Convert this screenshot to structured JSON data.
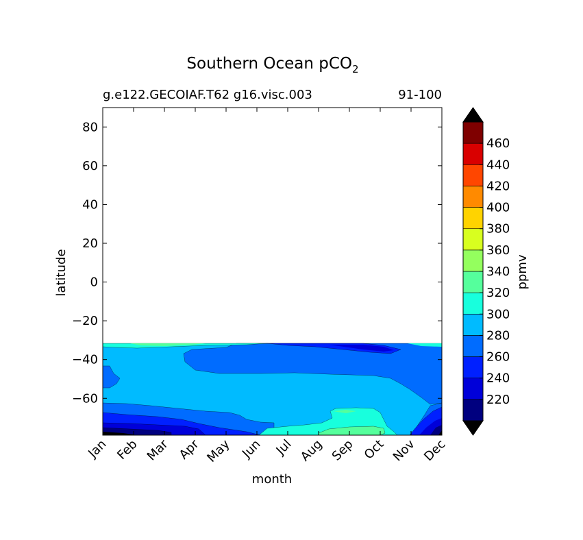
{
  "chart_data": {
    "type": "heatmap",
    "plot_kind": "filled contour",
    "title": "Southern Ocean pCO",
    "title_subscript": "2",
    "subtitle_left": "g.e122.GECOIAF.T62 g16.visc.003",
    "subtitle_right": "91-100",
    "xlabel": "month",
    "ylabel": "latitude",
    "x_categories": [
      "Jan",
      "Feb",
      "Mar",
      "Apr",
      "May",
      "Jun",
      "Jul",
      "Aug",
      "Sep",
      "Oct",
      "Nov",
      "Dec"
    ],
    "xlim": [
      1,
      12
    ],
    "ylim": [
      -79,
      90
    ],
    "yticks": [
      80,
      60,
      40,
      20,
      0,
      -20,
      -40,
      -60
    ],
    "ytick_labels": [
      "80",
      "60",
      "40",
      "20",
      "0",
      "−20",
      "−40",
      "−60"
    ],
    "data_lat_range": [
      -79,
      -32
    ],
    "colorbar": {
      "label": "ppmv",
      "levels": [
        200,
        220,
        240,
        260,
        280,
        300,
        320,
        340,
        360,
        380,
        400,
        420,
        440,
        460,
        480
      ],
      "tick_values": [
        220,
        240,
        260,
        280,
        300,
        320,
        340,
        360,
        380,
        400,
        420,
        440,
        460
      ],
      "colors": [
        "#00007f",
        "#0000d9",
        "#0020ff",
        "#006cff",
        "#00bbff",
        "#18ffdd",
        "#55ff9c",
        "#94ff5e",
        "#d8ff1f",
        "#ffd300",
        "#ff8a00",
        "#ff4600",
        "#d90000",
        "#7f0000"
      ],
      "under_color": "#000000",
      "over_color": "#000000",
      "extend": "both"
    },
    "field": [
      {
        "month": "Jan",
        "lat": -34,
        "value": 290
      },
      {
        "month": "Jan",
        "lat": -55,
        "value": 265
      },
      {
        "month": "Jan",
        "lat": -72,
        "value": 250
      },
      {
        "month": "Feb",
        "lat": -55,
        "value": 285
      },
      {
        "month": "Jun",
        "lat": -50,
        "value": 285
      },
      {
        "month": "Jul",
        "lat": -34,
        "value": 250
      },
      {
        "month": "Sep",
        "lat": -68,
        "value": 305
      },
      {
        "month": "Sep",
        "lat": -76,
        "value": 325
      },
      {
        "month": "Nov",
        "lat": -70,
        "value": 255
      },
      {
        "month": "Dec",
        "lat": -77,
        "value": 215
      }
    ]
  },
  "palette": {
    "c0": "#00007f",
    "c1": "#0000d9",
    "c2": "#0020ff",
    "c3": "#006cff",
    "c4": "#00bbff",
    "c5": "#18ffdd",
    "c6": "#55ff9c",
    "c7": "#94ff5e"
  }
}
